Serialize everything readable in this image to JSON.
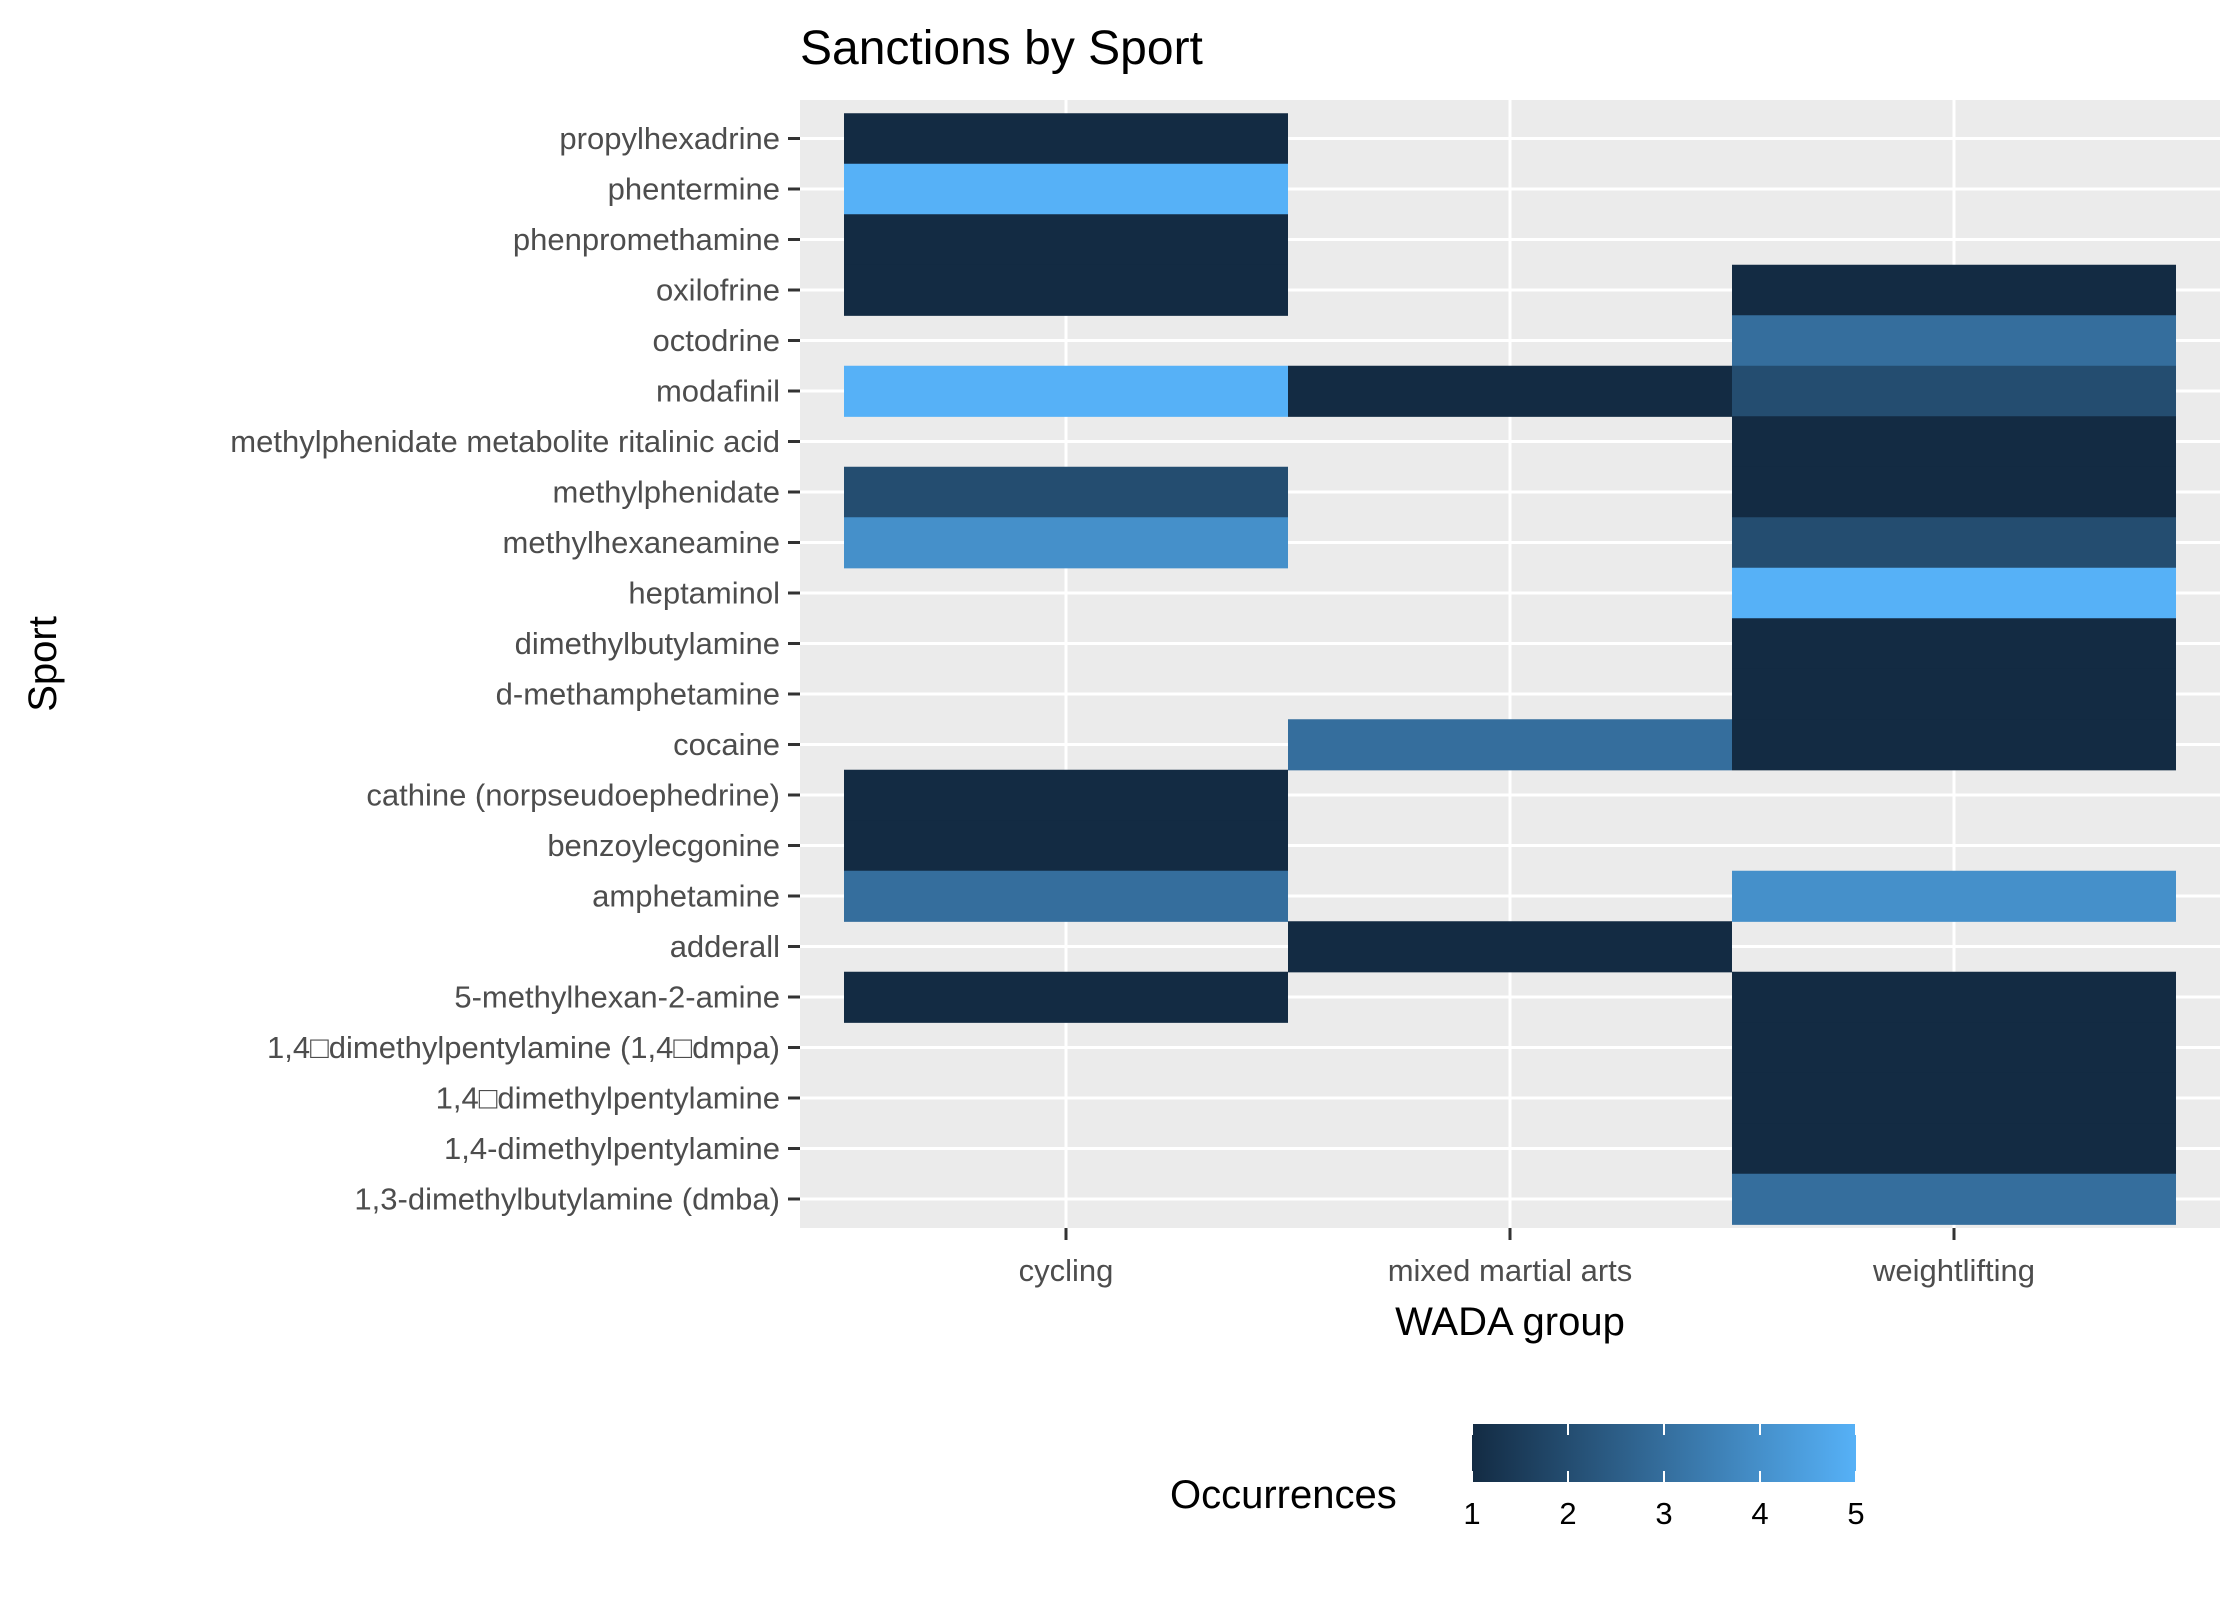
{
  "chart_data": {
    "type": "heatmap",
    "title": "Sanctions by Sport",
    "xlabel": "WADA group",
    "ylabel": "Sport",
    "x_categories": [
      "cycling",
      "mixed martial arts",
      "weightlifting"
    ],
    "y_categories": [
      "1,3-dimethylbutylamine (dmba)",
      "1,4-dimethylpentylamine",
      "1,4□dimethylpentylamine",
      "1,4□dimethylpentylamine (1,4□dmpa)",
      "5-methylhexan-2-amine",
      "adderall",
      "amphetamine",
      "benzoylecgonine",
      "cathine (norpseudoephedrine)",
      "cocaine",
      "d-methamphetamine",
      "dimethylbutylamine",
      "heptaminol",
      "methylhexaneamine",
      "methylphenidate",
      "methylphenidate metabolite ritalinic acid",
      "modafinil",
      "octodrine",
      "oxilofrine",
      "phenpromethamine",
      "phentermine",
      "propylhexadrine"
    ],
    "cells": [
      {
        "x": "cycling",
        "y": "propylhexadrine",
        "value": 1
      },
      {
        "x": "cycling",
        "y": "phentermine",
        "value": 5
      },
      {
        "x": "cycling",
        "y": "phenpromethamine",
        "value": 1
      },
      {
        "x": "cycling",
        "y": "oxilofrine",
        "value": 1
      },
      {
        "x": "cycling",
        "y": "modafinil",
        "value": 5
      },
      {
        "x": "cycling",
        "y": "methylphenidate",
        "value": 2
      },
      {
        "x": "cycling",
        "y": "methylhexaneamine",
        "value": 4
      },
      {
        "x": "cycling",
        "y": "cathine (norpseudoephedrine)",
        "value": 1
      },
      {
        "x": "cycling",
        "y": "benzoylecgonine",
        "value": 1
      },
      {
        "x": "cycling",
        "y": "amphetamine",
        "value": 3
      },
      {
        "x": "cycling",
        "y": "5-methylhexan-2-amine",
        "value": 1
      },
      {
        "x": "mixed martial arts",
        "y": "modafinil",
        "value": 1
      },
      {
        "x": "mixed martial arts",
        "y": "cocaine",
        "value": 3
      },
      {
        "x": "mixed martial arts",
        "y": "adderall",
        "value": 1
      },
      {
        "x": "weightlifting",
        "y": "oxilofrine",
        "value": 1
      },
      {
        "x": "weightlifting",
        "y": "octodrine",
        "value": 3
      },
      {
        "x": "weightlifting",
        "y": "modafinil",
        "value": 2
      },
      {
        "x": "weightlifting",
        "y": "methylphenidate metabolite ritalinic acid",
        "value": 1
      },
      {
        "x": "weightlifting",
        "y": "methylphenidate",
        "value": 1
      },
      {
        "x": "weightlifting",
        "y": "methylhexaneamine",
        "value": 2
      },
      {
        "x": "weightlifting",
        "y": "heptaminol",
        "value": 5
      },
      {
        "x": "weightlifting",
        "y": "dimethylbutylamine",
        "value": 1
      },
      {
        "x": "weightlifting",
        "y": "d-methamphetamine",
        "value": 1
      },
      {
        "x": "weightlifting",
        "y": "cocaine",
        "value": 1
      },
      {
        "x": "weightlifting",
        "y": "amphetamine",
        "value": 4
      },
      {
        "x": "weightlifting",
        "y": "5-methylhexan-2-amine",
        "value": 1
      },
      {
        "x": "weightlifting",
        "y": "1,4□dimethylpentylamine (1,4□dmpa)",
        "value": 1
      },
      {
        "x": "weightlifting",
        "y": "1,4□dimethylpentylamine",
        "value": 1
      },
      {
        "x": "weightlifting",
        "y": "1,4-dimethylpentylamine",
        "value": 1
      },
      {
        "x": "weightlifting",
        "y": "1,3-dimethylbutylamine (dmba)",
        "value": 3
      }
    ],
    "legend": {
      "title": "Occurrences",
      "placement": "bottom",
      "ticks": [
        1,
        2,
        3,
        4,
        5
      ],
      "range": [
        1,
        5
      ],
      "low_color": "#132B43",
      "high_color": "#56B1F7"
    },
    "panel_background": "#EBEBEB",
    "grid": true
  }
}
